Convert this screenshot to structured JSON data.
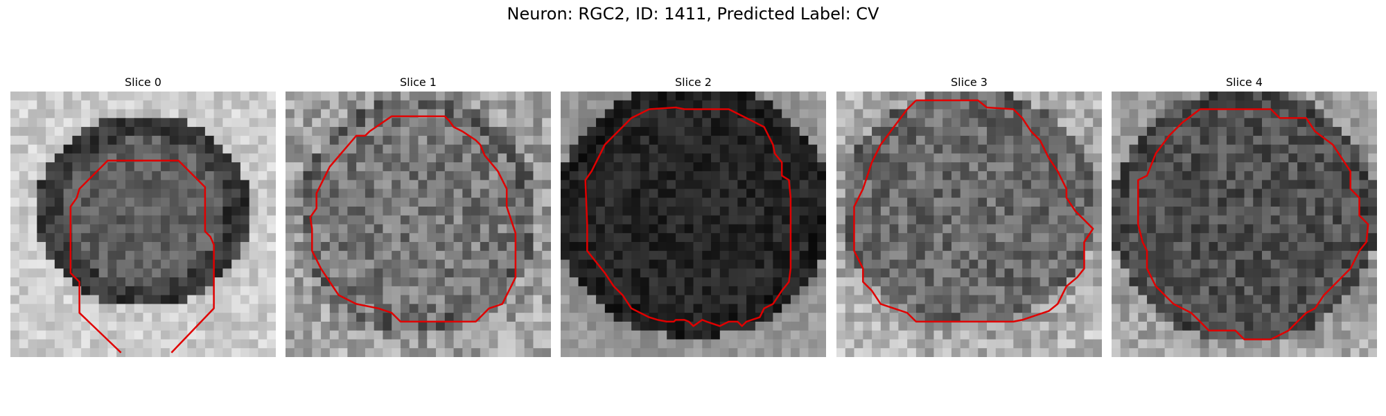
{
  "figure": {
    "title": "Neuron: RGC2, ID: 1411, Predicted Label: CV"
  },
  "contour_color": "#e00000",
  "panels": [
    {
      "title": "Slice 0",
      "image": "grayscale-microscopy-slice-0",
      "tone": "bright background, dark ring around mid-gray cell"
    },
    {
      "title": "Slice 1",
      "image": "grayscale-microscopy-slice-1",
      "tone": "light noisy background, mid-gray cell"
    },
    {
      "title": "Slice 2",
      "image": "grayscale-microscopy-slice-2",
      "tone": "darker, near-black cell"
    },
    {
      "title": "Slice 3",
      "image": "grayscale-microscopy-slice-3",
      "tone": "light background, mid-gray cell"
    },
    {
      "title": "Slice 4",
      "image": "grayscale-microscopy-slice-4",
      "tone": "light background, dark-gray cell"
    }
  ]
}
